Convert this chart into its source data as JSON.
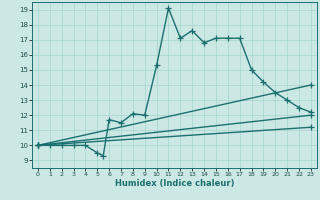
{
  "title": "",
  "xlabel": "Humidex (Indice chaleur)",
  "xlim": [
    -0.5,
    23.5
  ],
  "ylim": [
    8.5,
    19.5
  ],
  "xticks": [
    0,
    1,
    2,
    3,
    4,
    5,
    6,
    7,
    8,
    9,
    10,
    11,
    12,
    13,
    14,
    15,
    16,
    17,
    18,
    19,
    20,
    21,
    22,
    23
  ],
  "yticks": [
    9,
    10,
    11,
    12,
    13,
    14,
    15,
    16,
    17,
    18,
    19
  ],
  "bg_color": "#cce8e4",
  "grid_color": "#a8d4ce",
  "line_color": "#1a7070",
  "main_series": [
    [
      0,
      10
    ],
    [
      1,
      10
    ],
    [
      2,
      10
    ],
    [
      3,
      10
    ],
    [
      4,
      10
    ],
    [
      5,
      9.5
    ],
    [
      5.5,
      9.3
    ],
    [
      6,
      11.7
    ],
    [
      7,
      11.5
    ],
    [
      8,
      12.1
    ],
    [
      9,
      12.0
    ],
    [
      10,
      15.3
    ],
    [
      11,
      19.1
    ],
    [
      12,
      17.1
    ],
    [
      13,
      17.6
    ],
    [
      14,
      16.8
    ],
    [
      15,
      17.1
    ],
    [
      16,
      17.1
    ],
    [
      17,
      17.1
    ],
    [
      18,
      15.0
    ],
    [
      19,
      14.2
    ],
    [
      20,
      13.5
    ],
    [
      21,
      13.0
    ],
    [
      22,
      12.5
    ],
    [
      23,
      12.2
    ]
  ],
  "straight_lines": [
    {
      "x0": 0,
      "y0": 10,
      "x1": 23,
      "y1": 14.0
    },
    {
      "x0": 0,
      "y0": 10,
      "x1": 23,
      "y1": 12.0
    },
    {
      "x0": 0,
      "y0": 10,
      "x1": 23,
      "y1": 11.2
    }
  ],
  "marker": "+",
  "markersize": 4,
  "linewidth": 1.0
}
